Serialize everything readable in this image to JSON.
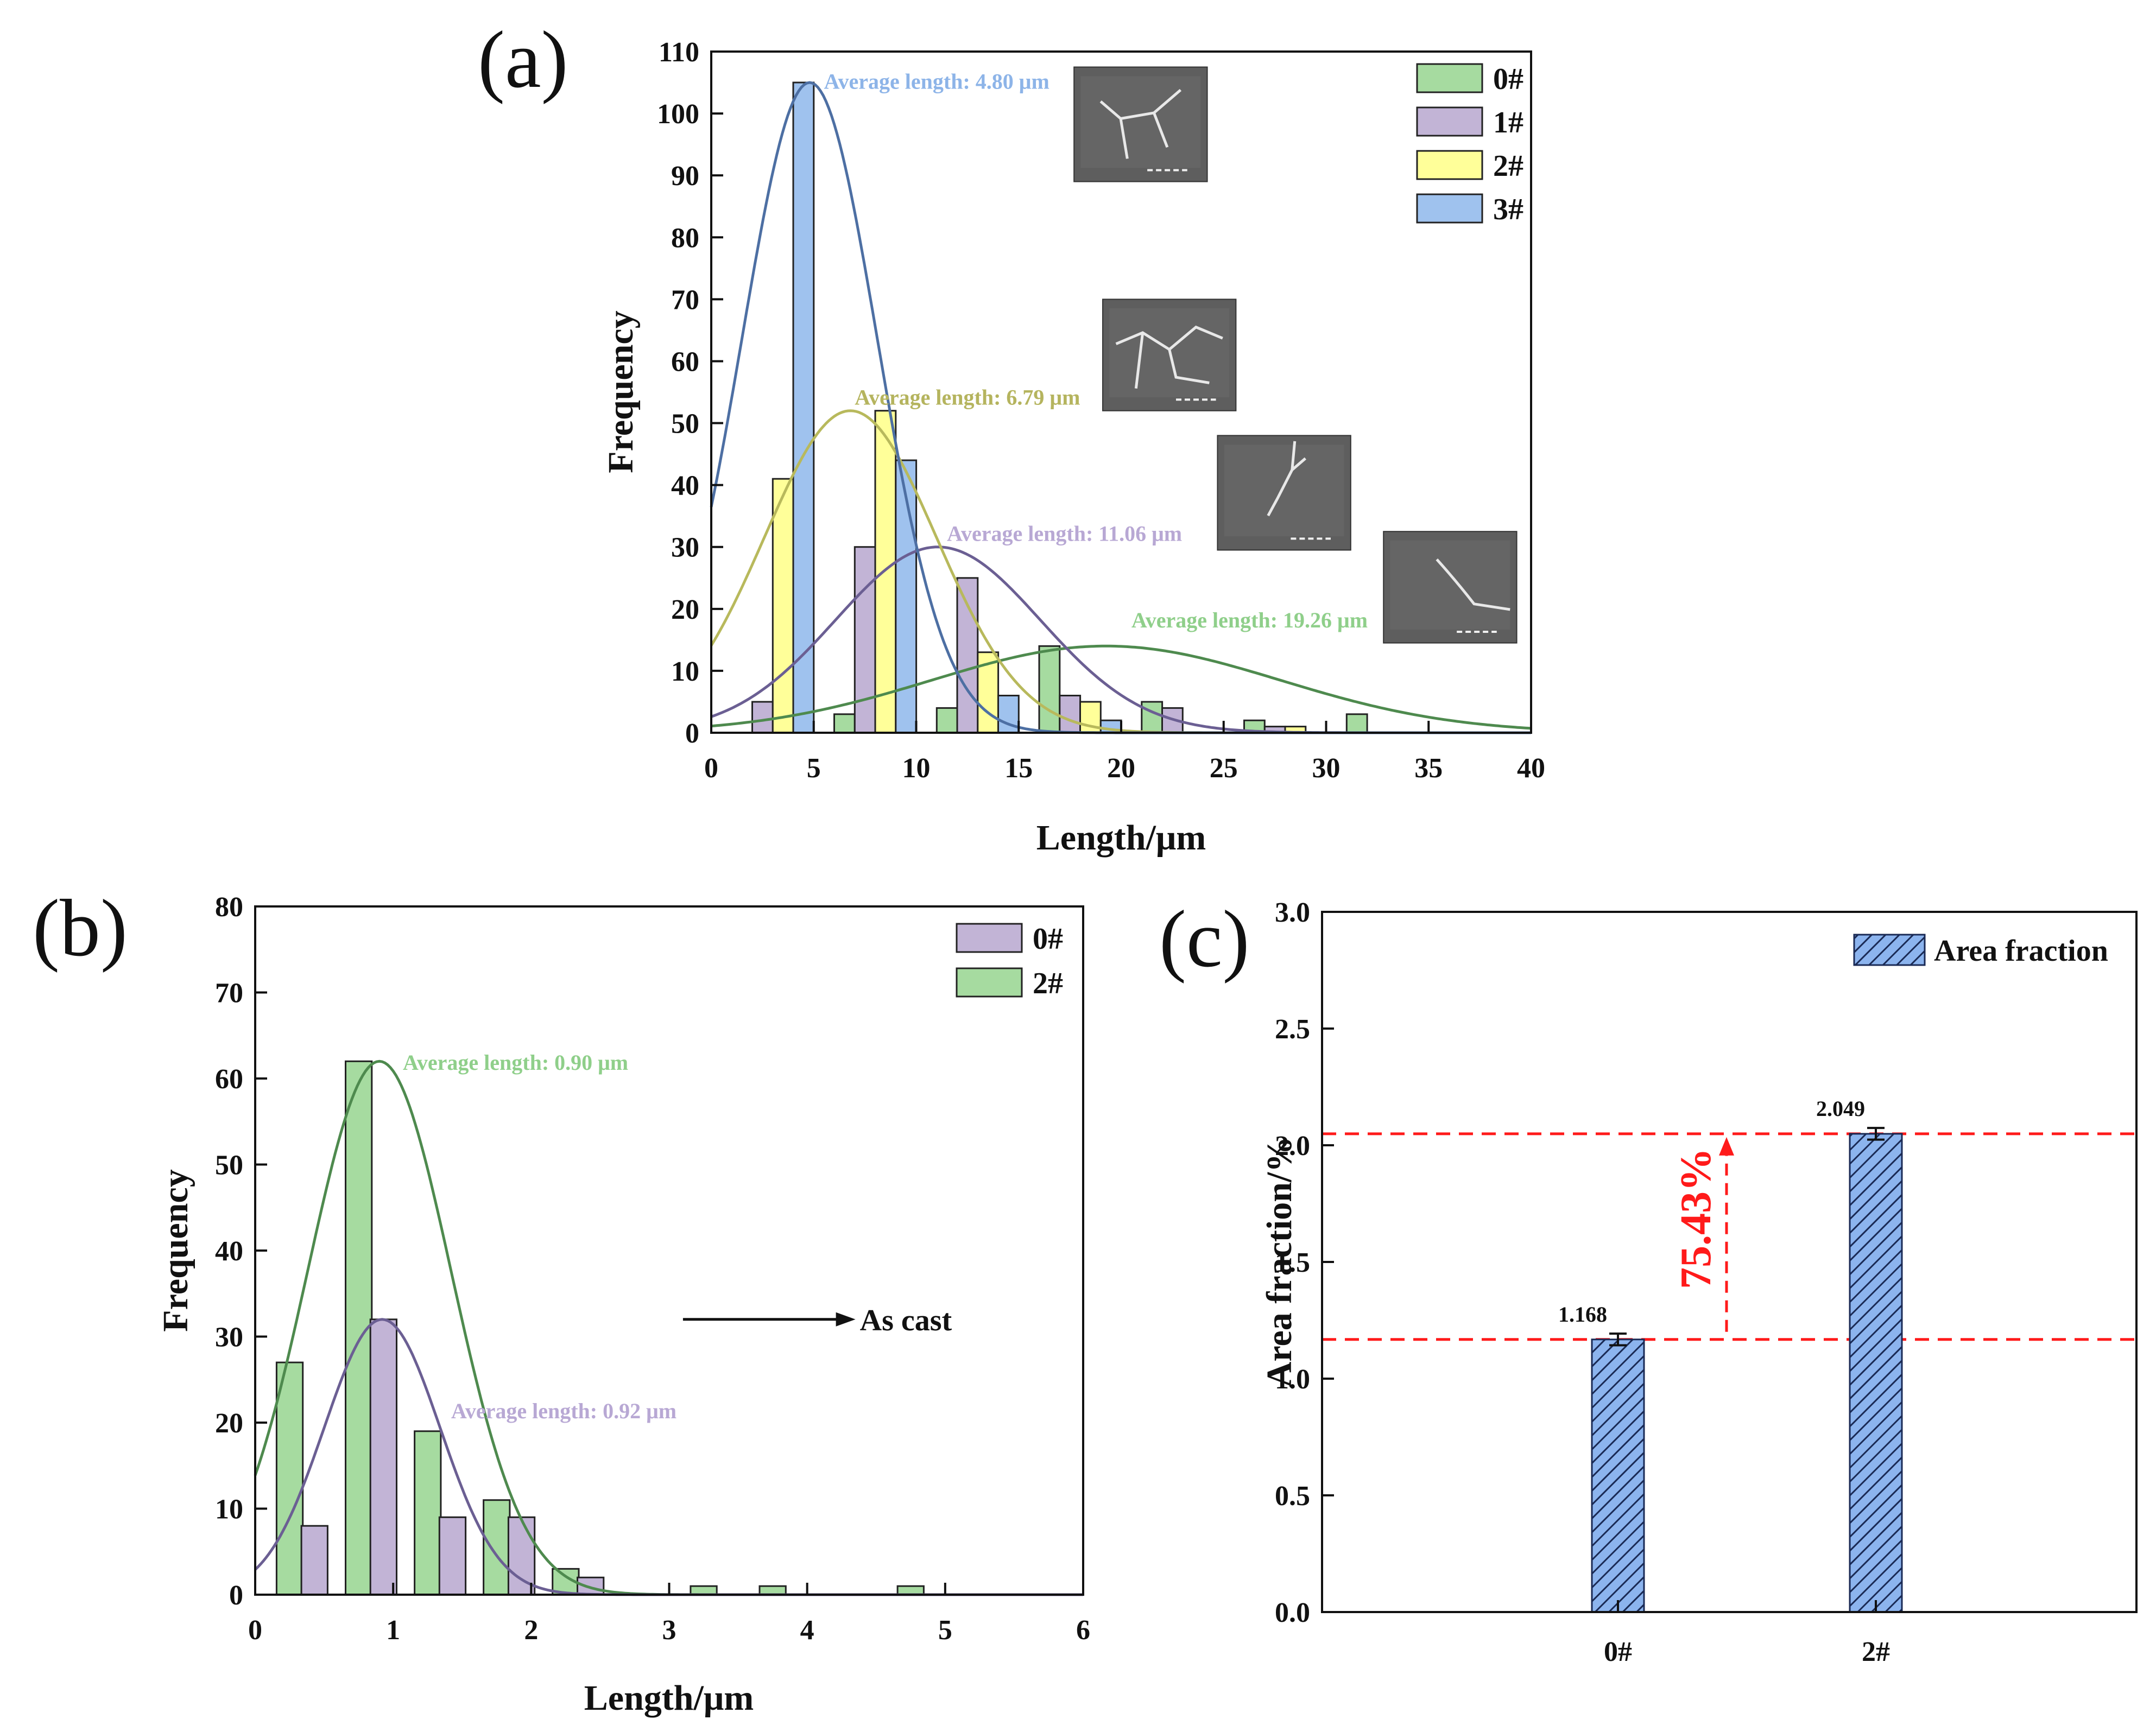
{
  "chart_data": [
    {
      "id": "a",
      "panel_label": "(a)",
      "type": "bar",
      "xlabel": "Length/μm",
      "ylabel": "Frequency",
      "xlim": [
        0,
        40
      ],
      "ylim": [
        0,
        110
      ],
      "xticks": [
        0,
        5,
        10,
        15,
        20,
        25,
        30,
        35,
        40
      ],
      "yticks": [
        0,
        10,
        20,
        30,
        40,
        50,
        60,
        70,
        80,
        90,
        100,
        110
      ],
      "bar_width": 1.0,
      "colors": {
        "0#": "#a6dba0",
        "1#": "#c2b4d6",
        "2#": "#ffff99",
        "3#": "#9fc2ee"
      },
      "curve_colors": {
        "0#": "#4e8a4e",
        "1#": "#6b5f93",
        "2#": "#b8b95c",
        "3#": "#4d6fa3"
      },
      "label_colors": {
        "0#": "#8fcf8a",
        "1#": "#b8a8d4",
        "2#": "#b5b45e",
        "3#": "#8db4e8"
      },
      "legend": [
        "0#",
        "1#",
        "2#",
        "3#"
      ],
      "series": [
        {
          "name": "0#",
          "x": [
            6.5,
            11.5,
            16.5,
            21.5,
            26.5,
            31.5
          ],
          "values": [
            3,
            4,
            14,
            5,
            2,
            3
          ],
          "fit": {
            "mean": 19.26,
            "sigma": 8.5,
            "peak": 14
          }
        },
        {
          "name": "1#",
          "x": [
            2.5,
            7.5,
            12.5,
            17.5,
            22.5,
            27.5
          ],
          "values": [
            5,
            30,
            25,
            6,
            4,
            1
          ],
          "fit": {
            "mean": 11.06,
            "sigma": 5.0,
            "peak": 30
          }
        },
        {
          "name": "2#",
          "x": [
            3.5,
            8.5,
            13.5,
            18.5,
            28.5
          ],
          "values": [
            41,
            52,
            13,
            5,
            1
          ],
          "fit": {
            "mean": 6.79,
            "sigma": 4.2,
            "peak": 52
          }
        },
        {
          "name": "3#",
          "x": [
            4.5,
            9.5,
            14.5,
            19.5
          ],
          "values": [
            105,
            44,
            6,
            2
          ],
          "fit": {
            "mean": 4.8,
            "sigma": 3.3,
            "peak": 105
          }
        }
      ],
      "annotations": [
        {
          "series": "3#",
          "text": "Average length: 4.80 μm",
          "x": 5.5,
          "y": 104
        },
        {
          "series": "2#",
          "text": "Average length: 6.79 μm",
          "x": 7.0,
          "y": 53
        },
        {
          "series": "1#",
          "text": "Average length: 11.06 μm",
          "x": 11.5,
          "y": 31
        },
        {
          "series": "0#",
          "text": "Average length: 19.26 μm",
          "x": 20.5,
          "y": 17
        }
      ],
      "insets": [
        {
          "name": "sem-image-3",
          "x": [
            17.7,
            24.2
          ],
          "y": [
            89,
            107.5
          ],
          "variant": 0
        },
        {
          "name": "sem-image-2",
          "x": [
            19.1,
            25.6
          ],
          "y": [
            52,
            70
          ],
          "variant": 1
        },
        {
          "name": "sem-image-1",
          "x": [
            24.7,
            31.2
          ],
          "y": [
            29.5,
            48
          ],
          "variant": 2
        },
        {
          "name": "sem-image-0",
          "x": [
            32.8,
            39.3
          ],
          "y": [
            14.5,
            32.5
          ],
          "variant": 3
        }
      ]
    },
    {
      "id": "b",
      "panel_label": "(b)",
      "type": "bar",
      "xlabel": "Length/μm",
      "ylabel": "Frequency",
      "xlim": [
        0,
        6
      ],
      "ylim": [
        0,
        80
      ],
      "xticks": [
        0,
        1,
        2,
        3,
        4,
        5,
        6
      ],
      "yticks": [
        0,
        10,
        20,
        30,
        40,
        50,
        60,
        70,
        80
      ],
      "bar_width": 0.19,
      "colors": {
        "0#": "#c2b4d6",
        "2#": "#a6dba0"
      },
      "curve_colors": {
        "0#": "#6b5f93",
        "2#": "#4e8a4e"
      },
      "label_colors": {
        "0#": "#b8a8d4",
        "2#": "#8fcf8a"
      },
      "legend": [
        "0#",
        "2#"
      ],
      "series": [
        {
          "name": "2#",
          "x": [
            0.25,
            0.75,
            1.25,
            1.75,
            2.25,
            3.25,
            3.75,
            4.75
          ],
          "values": [
            27,
            62,
            19,
            11,
            3,
            1,
            1,
            1
          ],
          "fit": {
            "mean": 0.9,
            "sigma": 0.52,
            "peak": 62
          }
        },
        {
          "name": "0#",
          "x": [
            0.43,
            0.93,
            1.43,
            1.93,
            2.43
          ],
          "values": [
            8,
            32,
            9,
            9,
            2
          ],
          "fit": {
            "mean": 0.92,
            "sigma": 0.42,
            "peak": 32
          }
        }
      ],
      "annotations": [
        {
          "series": "2#",
          "text": "Average length: 0.90 μm",
          "x": 1.07,
          "y": 61
        },
        {
          "series": "0#",
          "text": "Average length: 0.92 μm",
          "x": 1.42,
          "y": 20.5
        }
      ],
      "arrow_label": {
        "text": "As cast",
        "x_from": 3.1,
        "x_to": 4.35,
        "y": 32
      }
    },
    {
      "id": "c",
      "panel_label": "(c)",
      "type": "bar",
      "xlabel": "",
      "ylabel": "Area fraction/%",
      "ylim": [
        0,
        3.0
      ],
      "yticks": [
        "0.0",
        "0.5",
        "1.0",
        "1.5",
        "2.0",
        "2.5",
        "3.0"
      ],
      "categories": [
        "0#",
        "2#"
      ],
      "values": [
        1.168,
        2.049
      ],
      "value_labels": [
        "1.168",
        "2.049"
      ],
      "errors": [
        0.025,
        0.025
      ],
      "legend": [
        "Area fraction"
      ],
      "bar_color": "#8cb4ee",
      "increase_label": "75.43%",
      "increase_color": "#ff1a1a"
    }
  ]
}
